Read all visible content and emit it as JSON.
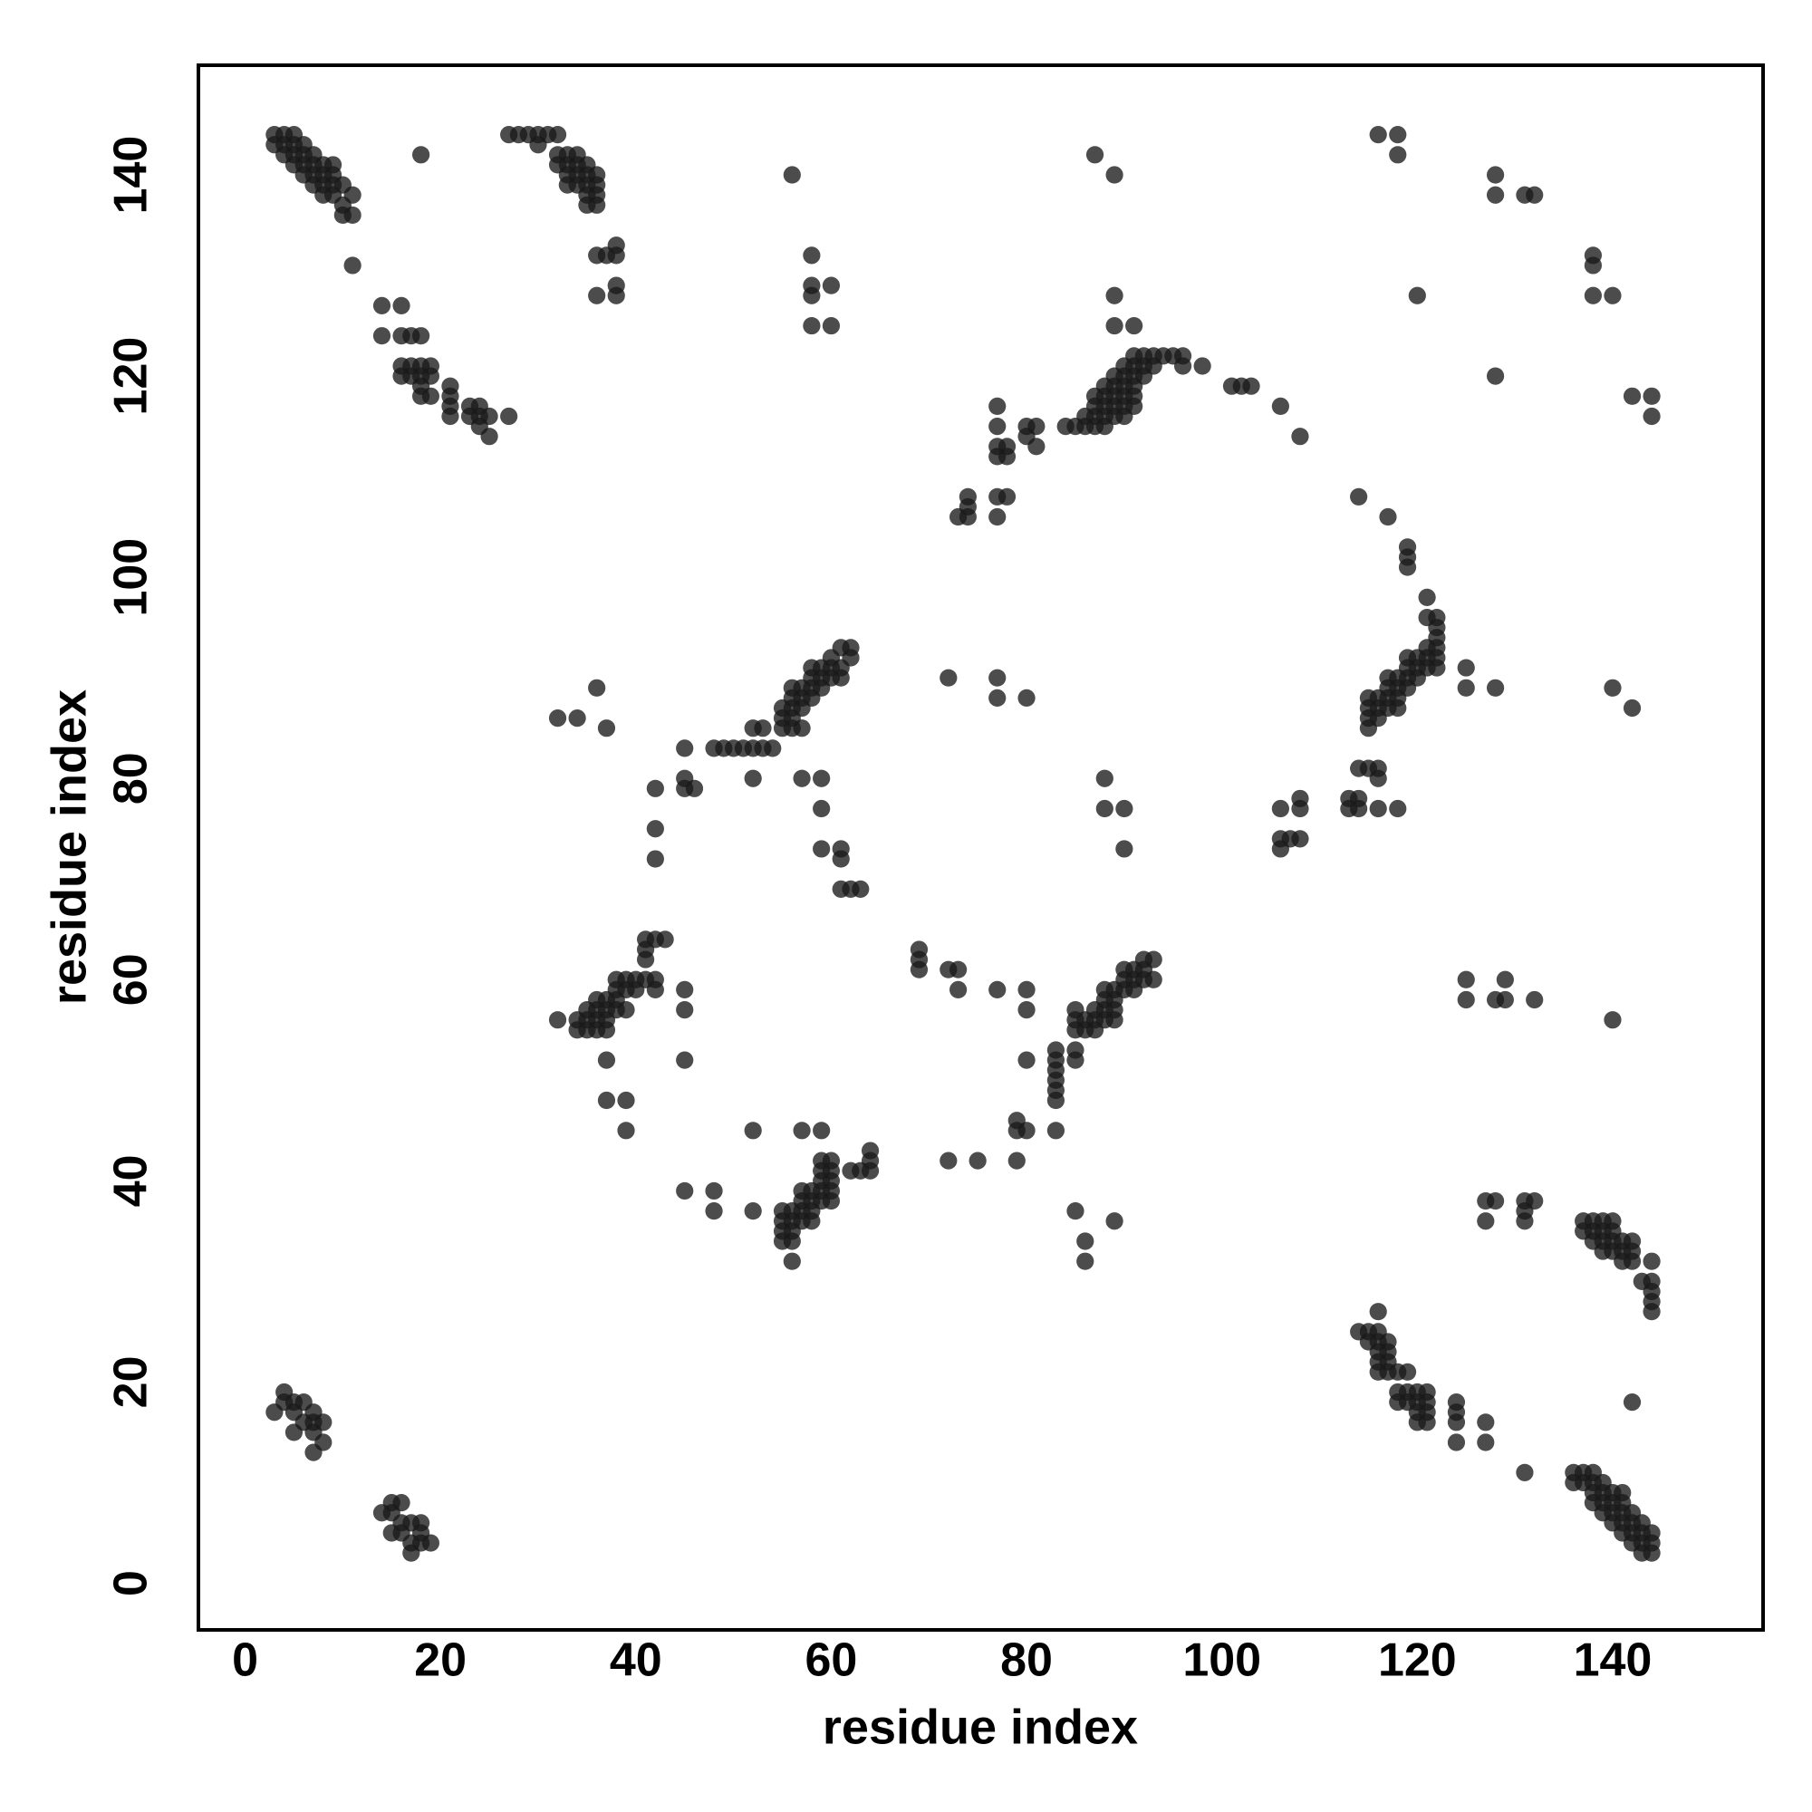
{
  "chart_data": {
    "type": "scatter",
    "x_label": "residue index",
    "y_label": "residue index",
    "xlim": [
      -4.78,
      155.4
    ],
    "ylim": [
      -4.64,
      150.9
    ],
    "xticks": [
      0,
      20,
      40,
      60,
      80,
      100,
      120,
      140
    ],
    "yticks": [
      0,
      20,
      40,
      60,
      80,
      100,
      120,
      140
    ],
    "grid": false,
    "color": "#1a1a1a",
    "opacity": 0.78,
    "x": [
      3,
      4,
      5,
      3,
      4,
      5,
      6,
      4,
      5,
      6,
      7,
      5,
      6,
      7,
      8,
      9,
      6,
      7,
      8,
      9,
      7,
      8,
      9,
      10,
      8,
      9,
      11,
      10,
      10,
      11,
      11,
      18,
      14,
      16,
      14,
      16,
      17,
      18,
      16,
      17,
      18,
      19,
      16,
      17,
      18,
      19,
      18,
      21,
      18,
      19,
      21,
      21,
      21,
      23,
      24,
      23,
      24,
      25,
      24,
      25,
      27,
      27,
      28,
      29,
      30,
      31,
      32,
      30,
      32,
      33,
      34,
      32,
      33,
      34,
      35,
      33,
      34,
      35,
      36,
      33,
      34,
      35,
      36,
      35,
      36,
      35,
      36,
      36,
      37,
      38,
      38,
      38,
      36,
      38,
      56,
      58,
      58,
      60,
      58,
      58,
      60,
      87,
      89,
      89,
      89,
      91,
      84,
      85,
      86,
      87,
      88,
      86,
      87,
      88,
      89,
      90,
      87,
      88,
      89,
      90,
      91,
      87,
      88,
      89,
      90,
      91,
      88,
      89,
      90,
      91,
      89,
      90,
      91,
      92,
      90,
      91,
      92,
      93,
      91,
      92,
      93,
      94,
      95,
      96,
      96,
      98,
      101,
      102,
      103,
      106,
      108,
      77,
      77,
      77,
      78,
      77,
      78,
      80,
      81,
      80,
      81,
      73,
      74,
      74,
      74,
      77,
      78,
      77,
      114,
      117,
      119,
      119,
      119,
      121,
      121,
      122,
      122,
      115,
      115,
      115,
      115,
      116,
      116,
      116,
      117,
      117,
      117,
      117,
      118,
      118,
      118,
      118,
      119,
      119,
      119,
      119,
      120,
      120,
      120,
      121,
      121,
      121,
      122,
      122,
      122,
      122,
      125,
      125,
      128,
      140,
      142,
      52,
      53,
      52,
      53,
      54,
      51,
      50,
      49,
      48,
      55,
      55,
      55,
      56,
      56,
      56,
      56,
      56,
      57,
      57,
      57,
      57,
      58,
      58,
      58,
      58,
      59,
      59,
      59,
      60,
      60,
      60,
      61,
      61,
      61,
      62,
      62,
      32,
      34,
      36,
      37,
      45,
      45,
      45,
      46,
      42,
      42,
      42,
      52,
      57,
      59,
      59,
      59,
      61,
      61,
      61,
      62,
      63,
      72,
      77,
      77,
      80,
      88,
      88,
      90,
      90,
      106,
      108,
      108,
      106,
      107,
      108,
      106,
      113,
      114,
      113,
      114,
      114,
      115,
      116,
      116,
      116,
      118,
      32,
      34,
      35,
      36,
      37,
      34,
      35,
      36,
      37,
      35,
      36,
      37,
      36,
      37,
      38,
      38,
      39,
      38,
      39,
      40,
      38,
      39,
      40,
      41,
      42,
      41,
      41,
      41,
      42,
      43,
      42,
      45,
      45,
      45,
      37,
      37,
      39,
      39,
      83,
      83,
      83,
      83,
      83,
      83,
      85,
      85,
      85,
      85,
      85,
      86,
      86,
      87,
      87,
      87,
      88,
      88,
      88,
      88,
      89,
      89,
      89,
      89,
      90,
      90,
      90,
      91,
      91,
      91,
      92,
      92,
      92,
      93,
      93,
      80,
      80,
      80,
      77,
      73,
      72,
      73,
      69,
      69,
      69,
      79,
      79,
      80,
      83,
      79,
      72,
      75,
      52,
      55,
      55,
      55,
      55,
      56,
      56,
      56,
      56,
      57,
      57,
      57,
      57,
      58,
      58,
      58,
      58,
      59,
      59,
      59,
      59,
      59,
      60,
      60,
      60,
      60,
      60,
      62,
      63,
      64,
      64,
      64,
      56,
      52,
      57,
      59,
      45,
      48,
      48,
      85,
      86,
      86,
      89,
      125,
      125,
      128,
      129,
      129,
      132,
      140,
      127,
      128,
      127,
      131,
      132,
      131,
      131,
      137,
      137,
      138,
      138,
      138,
      139,
      139,
      139,
      139,
      140,
      140,
      140,
      140,
      141,
      141,
      141,
      142,
      142,
      142,
      143,
      144,
      144,
      144,
      144,
      144,
      114,
      115,
      116,
      116,
      115,
      116,
      117,
      116,
      117,
      116,
      117,
      116,
      117,
      118,
      119,
      118,
      119,
      120,
      121,
      118,
      119,
      120,
      121,
      120,
      121,
      120,
      121,
      124,
      124,
      124,
      124,
      127,
      127,
      131,
      142,
      136,
      137,
      138,
      136,
      137,
      138,
      139,
      138,
      139,
      140,
      141,
      138,
      139,
      140,
      141,
      139,
      140,
      141,
      142,
      140,
      141,
      142,
      143,
      141,
      142,
      143,
      144,
      142,
      143,
      144,
      143,
      144,
      116,
      118,
      118,
      120,
      128,
      128,
      131,
      132,
      128,
      138,
      138,
      138,
      140,
      142,
      144,
      144,
      3,
      4,
      4,
      5,
      5,
      5,
      6,
      6,
      7,
      7,
      7,
      7,
      8,
      8,
      14,
      15,
      15,
      16,
      16,
      15,
      16,
      17,
      17,
      17,
      18,
      18,
      18,
      19
    ],
    "values": [
      144,
      144,
      144,
      143,
      143,
      143,
      143,
      142,
      142,
      142,
      142,
      141,
      141,
      141,
      141,
      141,
      140,
      140,
      140,
      140,
      139,
      139,
      139,
      139,
      138,
      138,
      138,
      137,
      136,
      136,
      131,
      142,
      127,
      127,
      124,
      124,
      124,
      124,
      121,
      121,
      121,
      121,
      120,
      120,
      120,
      120,
      119,
      119,
      118,
      118,
      118,
      117,
      116,
      117,
      117,
      116,
      116,
      116,
      115,
      114,
      116,
      144,
      144,
      144,
      144,
      144,
      144,
      143,
      142,
      142,
      142,
      141,
      141,
      141,
      141,
      140,
      140,
      140,
      140,
      139,
      139,
      139,
      139,
      138,
      138,
      137,
      137,
      132,
      132,
      133,
      132,
      129,
      128,
      128,
      140,
      132,
      129,
      129,
      128,
      125,
      125,
      142,
      140,
      128,
      125,
      125,
      115,
      115,
      115,
      115,
      115,
      116,
      116,
      116,
      116,
      116,
      117,
      117,
      117,
      117,
      117,
      118,
      118,
      118,
      118,
      118,
      119,
      119,
      119,
      119,
      120,
      120,
      120,
      120,
      121,
      121,
      121,
      121,
      122,
      122,
      122,
      122,
      122,
      122,
      121,
      121,
      119,
      119,
      119,
      117,
      114,
      117,
      115,
      113,
      113,
      112,
      112,
      115,
      115,
      114,
      113,
      106,
      106,
      107,
      108,
      108,
      108,
      106,
      108,
      106,
      103,
      102,
      101,
      98,
      96,
      96,
      95,
      85,
      86,
      87,
      88,
      86,
      87,
      88,
      87,
      88,
      89,
      90,
      87,
      88,
      89,
      90,
      89,
      90,
      91,
      92,
      90,
      91,
      92,
      91,
      92,
      93,
      91,
      92,
      93,
      94,
      91,
      89,
      89,
      89,
      87,
      85,
      85,
      83,
      83,
      83,
      83,
      83,
      83,
      83,
      85,
      86,
      87,
      85,
      86,
      87,
      88,
      89,
      85,
      87,
      88,
      89,
      88,
      89,
      90,
      91,
      89,
      90,
      91,
      90,
      91,
      92,
      90,
      91,
      93,
      92,
      93,
      86,
      86,
      89,
      85,
      83,
      80,
      79,
      79,
      79,
      75,
      72,
      80,
      80,
      80,
      77,
      73,
      73,
      72,
      69,
      69,
      69,
      90,
      90,
      88,
      88,
      80,
      77,
      77,
      73,
      77,
      77,
      78,
      74,
      74,
      74,
      73,
      78,
      78,
      77,
      77,
      81,
      81,
      81,
      80,
      77,
      77,
      56,
      56,
      56,
      56,
      56,
      55,
      55,
      55,
      55,
      57,
      57,
      57,
      58,
      58,
      58,
      57,
      57,
      59,
      59,
      59,
      60,
      60,
      60,
      60,
      60,
      62,
      63,
      64,
      64,
      64,
      59,
      59,
      57,
      52,
      52,
      48,
      48,
      45,
      53,
      52,
      51,
      50,
      49,
      48,
      52,
      53,
      55,
      56,
      57,
      55,
      56,
      55,
      56,
      57,
      56,
      57,
      58,
      59,
      56,
      57,
      58,
      59,
      59,
      60,
      61,
      59,
      60,
      61,
      60,
      61,
      62,
      60,
      62,
      59,
      57,
      52,
      59,
      61,
      61,
      59,
      63,
      62,
      61,
      46,
      45,
      45,
      45,
      42,
      42,
      42,
      37,
      35,
      36,
      37,
      34,
      34,
      35,
      36,
      37,
      36,
      37,
      38,
      39,
      36,
      37,
      38,
      39,
      38,
      39,
      40,
      41,
      42,
      38,
      39,
      40,
      41,
      42,
      41,
      41,
      41,
      42,
      43,
      32,
      45,
      45,
      45,
      39,
      39,
      37,
      37,
      34,
      32,
      36,
      60,
      58,
      58,
      58,
      60,
      58,
      56,
      38,
      38,
      36,
      38,
      38,
      37,
      36,
      35,
      36,
      34,
      35,
      36,
      33,
      34,
      35,
      36,
      33,
      34,
      35,
      36,
      32,
      33,
      34,
      32,
      33,
      34,
      30,
      32,
      30,
      29,
      28,
      27,
      25,
      25,
      25,
      27,
      24,
      24,
      24,
      23,
      23,
      22,
      22,
      21,
      21,
      21,
      21,
      19,
      19,
      19,
      19,
      18,
      18,
      18,
      18,
      17,
      17,
      16,
      16,
      18,
      17,
      16,
      14,
      16,
      14,
      11,
      18,
      11,
      11,
      11,
      10,
      10,
      10,
      10,
      9,
      9,
      9,
      9,
      8,
      8,
      8,
      8,
      7,
      7,
      7,
      7,
      6,
      6,
      6,
      6,
      5,
      5,
      5,
      5,
      4,
      4,
      4,
      3,
      3,
      144,
      144,
      142,
      128,
      140,
      138,
      138,
      138,
      120,
      132,
      131,
      128,
      128,
      118,
      118,
      116,
      17,
      18,
      19,
      18,
      17,
      15,
      18,
      16,
      17,
      16,
      15,
      13,
      16,
      14,
      7,
      8,
      7,
      8,
      6,
      5,
      5,
      6,
      4,
      3,
      6,
      5,
      4,
      4
    ]
  }
}
